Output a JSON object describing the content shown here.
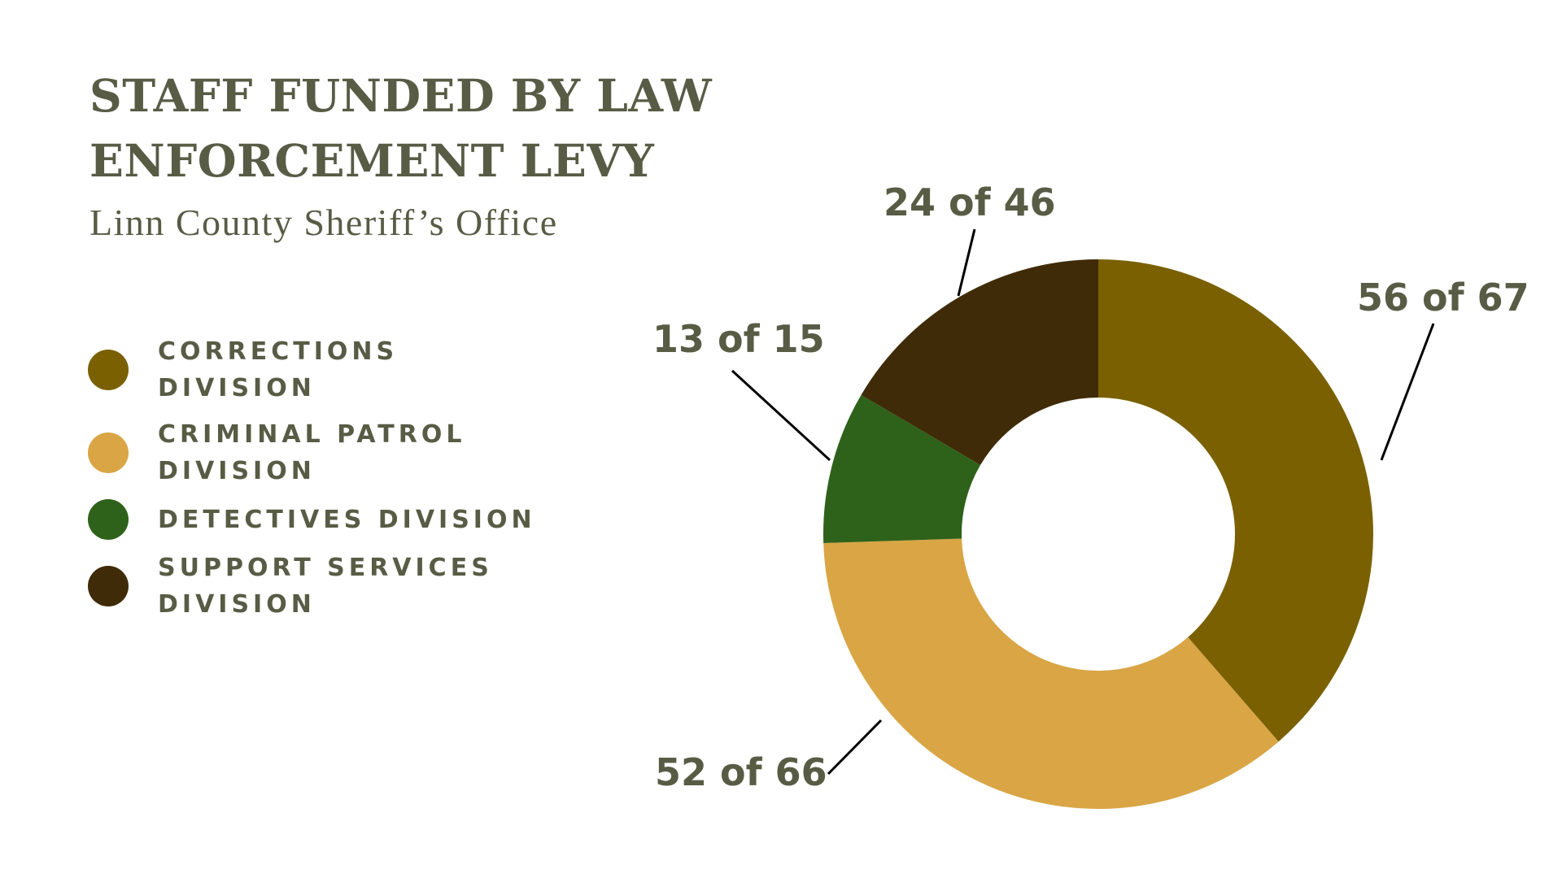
{
  "title": "STAFF FUNDED BY LAW ENFORCEMENT LEVY",
  "subtitle": "Linn County Sheriff’s Office",
  "chart_data": {
    "type": "pie",
    "style": "donut",
    "categories": [
      "CORRECTIONS DIVISION",
      "CRIMINAL PATROL DIVISION",
      "DETECTIVES DIVISION",
      "SUPPORT SERVICES DIVISION"
    ],
    "values": [
      56,
      52,
      13,
      24
    ],
    "totals": [
      67,
      66,
      15,
      46
    ],
    "labels": [
      "56 of 67",
      "52 of 66",
      "13 of 15",
      "24 of 46"
    ],
    "colors": [
      "#7a6000",
      "#d9a545",
      "#2e621a",
      "#3f2b07"
    ],
    "legend_position": "left"
  }
}
